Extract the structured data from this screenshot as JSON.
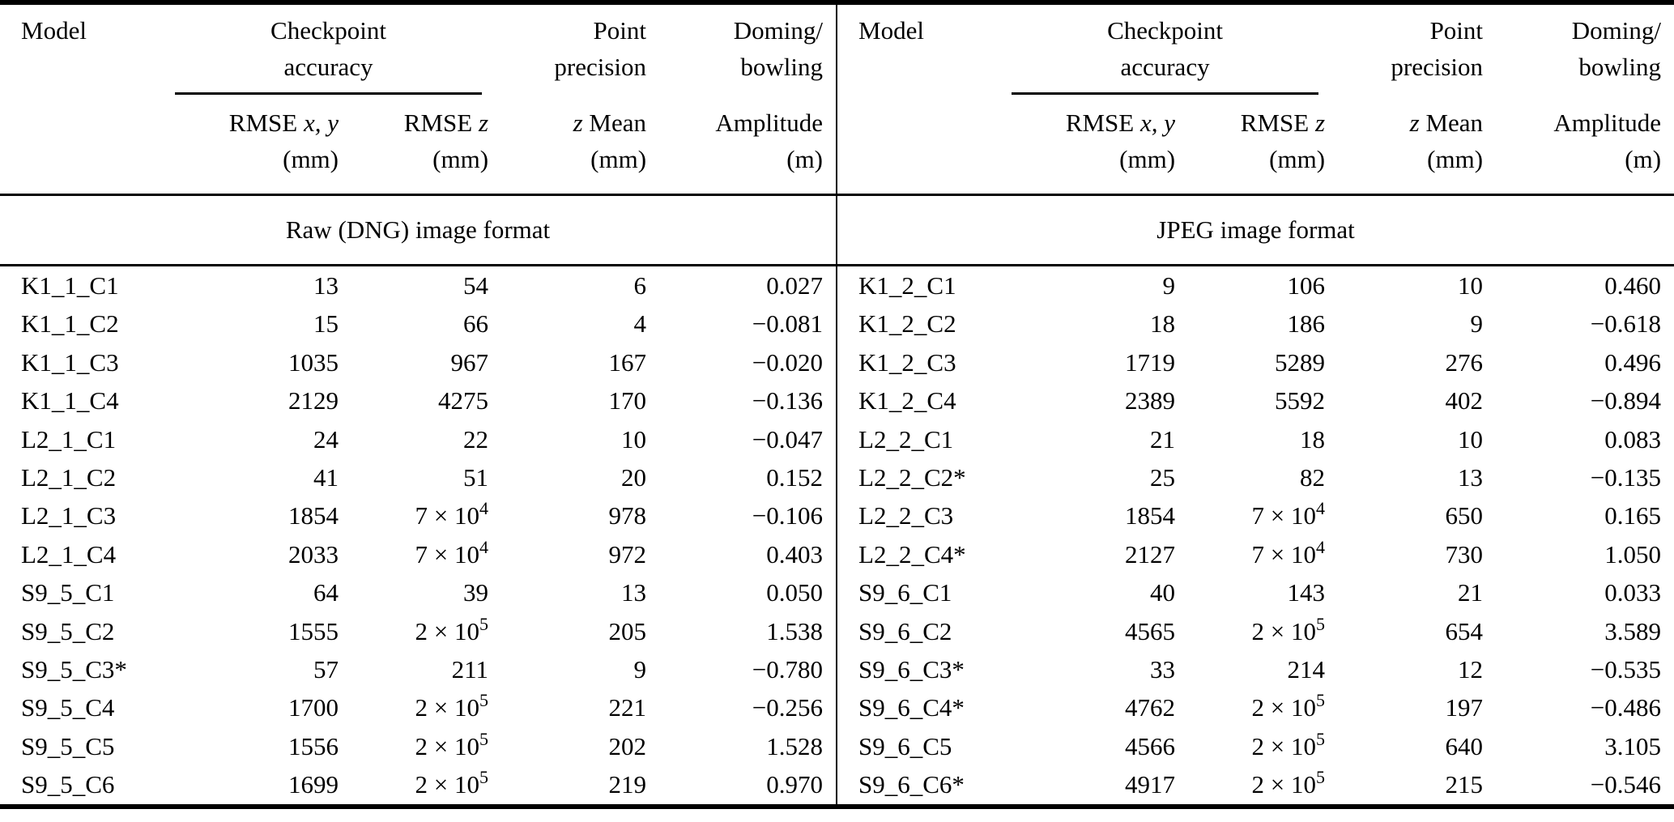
{
  "page": {
    "background": "#ffffff",
    "text_color": "#000000"
  },
  "table": {
    "headers": {
      "model": "Model",
      "checkpoint_group": {
        "line1": "Checkpoint",
        "line2": "accuracy"
      },
      "point_group": {
        "line1": "Point",
        "line2": "precision"
      },
      "doming_group": {
        "line1": "Doming/",
        "line2": "bowling"
      },
      "sub": {
        "rmse_xy": {
          "label": "RMSE",
          "math": "x, y"
        },
        "rmse_z": {
          "label": "RMSE",
          "math": "z"
        },
        "z_mean": {
          "math": "z",
          "label": "Mean"
        },
        "amplitude": "Amplitude",
        "unit_mm": "(mm)",
        "unit_m": "(m)"
      }
    },
    "sections": {
      "left": "Raw (DNG) image format",
      "right": "JPEG image format"
    },
    "columns": [
      "model",
      "rmse_xy",
      "rmse_z",
      "z_mean",
      "amplitude"
    ],
    "left_rows": [
      {
        "model": "K1_1_C1",
        "rmse_xy": "13",
        "rmse_z": "54",
        "z_mean": "6",
        "amplitude": "0.027"
      },
      {
        "model": "K1_1_C2",
        "rmse_xy": "15",
        "rmse_z": "66",
        "z_mean": "4",
        "amplitude": "−0.081"
      },
      {
        "model": "K1_1_C3",
        "rmse_xy": "1035",
        "rmse_z": "967",
        "z_mean": "167",
        "amplitude": "−0.020"
      },
      {
        "model": "K1_1_C4",
        "rmse_xy": "2129",
        "rmse_z": "4275",
        "z_mean": "170",
        "amplitude": "−0.136"
      },
      {
        "model": "L2_1_C1",
        "rmse_xy": "24",
        "rmse_z": "22",
        "z_mean": "10",
        "amplitude": "−0.047"
      },
      {
        "model": "L2_1_C2",
        "rmse_xy": "41",
        "rmse_z": "51",
        "z_mean": "20",
        "amplitude": "0.152"
      },
      {
        "model": "L2_1_C3",
        "rmse_xy": "1854",
        "rmse_z": "7 × 10^4",
        "z_mean": "978",
        "amplitude": "−0.106"
      },
      {
        "model": "L2_1_C4",
        "rmse_xy": "2033",
        "rmse_z": "7 × 10^4",
        "z_mean": "972",
        "amplitude": "0.403"
      },
      {
        "model": "S9_5_C1",
        "rmse_xy": "64",
        "rmse_z": "39",
        "z_mean": "13",
        "amplitude": "0.050"
      },
      {
        "model": "S9_5_C2",
        "rmse_xy": "1555",
        "rmse_z": "2 × 10^5",
        "z_mean": "205",
        "amplitude": "1.538"
      },
      {
        "model": "S9_5_C3*",
        "rmse_xy": "57",
        "rmse_z": "211",
        "z_mean": "9",
        "amplitude": "−0.780"
      },
      {
        "model": "S9_5_C4",
        "rmse_xy": "1700",
        "rmse_z": "2 × 10^5",
        "z_mean": "221",
        "amplitude": "−0.256"
      },
      {
        "model": "S9_5_C5",
        "rmse_xy": "1556",
        "rmse_z": "2 × 10^5",
        "z_mean": "202",
        "amplitude": "1.528"
      },
      {
        "model": "S9_5_C6",
        "rmse_xy": "1699",
        "rmse_z": "2 × 10^5",
        "z_mean": "219",
        "amplitude": "0.970"
      }
    ],
    "right_rows": [
      {
        "model": "K1_2_C1",
        "rmse_xy": "9",
        "rmse_z": "106",
        "z_mean": "10",
        "amplitude": "0.460"
      },
      {
        "model": "K1_2_C2",
        "rmse_xy": "18",
        "rmse_z": "186",
        "z_mean": "9",
        "amplitude": "−0.618"
      },
      {
        "model": "K1_2_C3",
        "rmse_xy": "1719",
        "rmse_z": "5289",
        "z_mean": "276",
        "amplitude": "0.496"
      },
      {
        "model": "K1_2_C4",
        "rmse_xy": "2389",
        "rmse_z": "5592",
        "z_mean": "402",
        "amplitude": "−0.894"
      },
      {
        "model": "L2_2_C1",
        "rmse_xy": "21",
        "rmse_z": "18",
        "z_mean": "10",
        "amplitude": "0.083"
      },
      {
        "model": "L2_2_C2*",
        "rmse_xy": "25",
        "rmse_z": "82",
        "z_mean": "13",
        "amplitude": "−0.135"
      },
      {
        "model": "L2_2_C3",
        "rmse_xy": "1854",
        "rmse_z": "7 × 10^4",
        "z_mean": "650",
        "amplitude": "0.165"
      },
      {
        "model": "L2_2_C4*",
        "rmse_xy": "2127",
        "rmse_z": "7 × 10^4",
        "z_mean": "730",
        "amplitude": "1.050"
      },
      {
        "model": "S9_6_C1",
        "rmse_xy": "40",
        "rmse_z": "143",
        "z_mean": "21",
        "amplitude": "0.033"
      },
      {
        "model": "S9_6_C2",
        "rmse_xy": "4565",
        "rmse_z": "2 × 10^5",
        "z_mean": "654",
        "amplitude": "3.589"
      },
      {
        "model": "S9_6_C3*",
        "rmse_xy": "33",
        "rmse_z": "214",
        "z_mean": "12",
        "amplitude": "−0.535"
      },
      {
        "model": "S9_6_C4*",
        "rmse_xy": "4762",
        "rmse_z": "2 × 10^5",
        "z_mean": "197",
        "amplitude": "−0.486"
      },
      {
        "model": "S9_6_C5",
        "rmse_xy": "4566",
        "rmse_z": "2 × 10^5",
        "z_mean": "640",
        "amplitude": "3.105"
      },
      {
        "model": "S9_6_C6*",
        "rmse_xy": "4917",
        "rmse_z": "2 × 10^5",
        "z_mean": "215",
        "amplitude": "−0.546"
      }
    ]
  }
}
